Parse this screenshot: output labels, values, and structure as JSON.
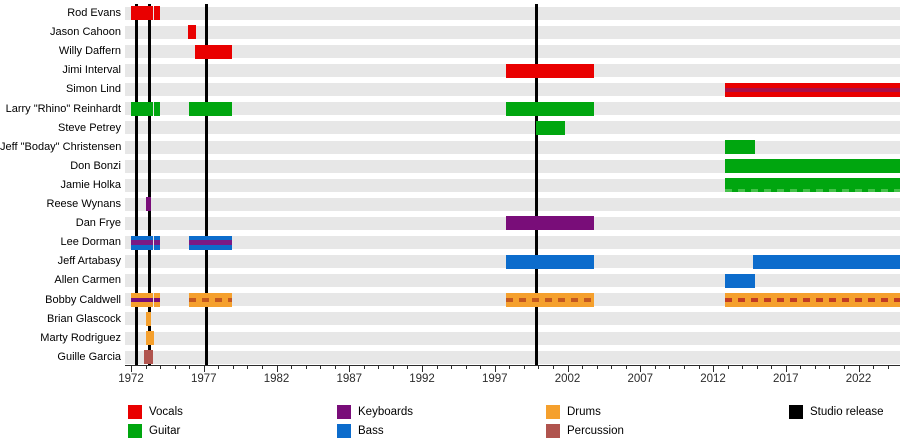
{
  "chart_data": {
    "type": "timeline",
    "description": "Band members timeline (gantt-style bars per member, by year)",
    "x_axis": {
      "min_year": 1971.6,
      "max_year": 2024.85,
      "major_tick_years": [
        1972,
        1977,
        1982,
        1987,
        1992,
        1997,
        2002,
        2007,
        2012,
        2017,
        2022
      ],
      "minor_tick_every": 1,
      "minor_tick_start": 1972,
      "minor_tick_end": 2024
    },
    "release_line_years": [
      1972.4,
      1973.25,
      1977.2,
      1999.9
    ],
    "legend": [
      {
        "label": "Vocals",
        "color": "#e90000",
        "col": 0,
        "row": 0
      },
      {
        "label": "Guitar",
        "color": "#00a60f",
        "col": 0,
        "row": 1
      },
      {
        "label": "Keyboards",
        "color": "#790d79",
        "col": 1,
        "row": 0
      },
      {
        "label": "Bass",
        "color": "#0c6ccc",
        "col": 1,
        "row": 1
      },
      {
        "label": "Drums",
        "color": "#f5a02d",
        "col": 2,
        "row": 0
      },
      {
        "label": "Percussion",
        "color": "#b0544e",
        "col": 2,
        "row": 1
      },
      {
        "label": "Studio release",
        "color": "#000000",
        "col": 3,
        "row": 0
      }
    ],
    "members": [
      {
        "name": "Rod Evans",
        "bars": [
          {
            "start": 1972.0,
            "end": 1973.5,
            "color": "#e90000"
          },
          {
            "start": 1973.6,
            "end": 1974.0,
            "color": "#e90000"
          }
        ]
      },
      {
        "name": "Jason Cahoon",
        "bars": [
          {
            "start": 1975.9,
            "end": 1976.5,
            "color": "#e90000"
          }
        ]
      },
      {
        "name": "Willy Daffern",
        "bars": [
          {
            "start": 1976.4,
            "end": 1978.95,
            "color": "#e90000"
          }
        ]
      },
      {
        "name": "Jimi Interval",
        "bars": [
          {
            "start": 1997.8,
            "end": 2003.8,
            "color": "#e90000"
          }
        ]
      },
      {
        "name": "Simon Lind",
        "bars": [
          {
            "start": 2012.8,
            "end": 2024.85,
            "color": "#e90000",
            "stripe": {
              "color": "#ab0f48",
              "style": "solid",
              "position": "middle"
            }
          }
        ]
      },
      {
        "name": "Larry \"Rhino\" Reinhardt",
        "bars": [
          {
            "start": 1972.0,
            "end": 1973.5,
            "color": "#00a60f"
          },
          {
            "start": 1973.6,
            "end": 1974.0,
            "color": "#00a60f"
          },
          {
            "start": 1976.0,
            "end": 1978.95,
            "color": "#00a60f"
          },
          {
            "start": 1997.8,
            "end": 2003.8,
            "color": "#00a60f"
          }
        ]
      },
      {
        "name": "Steve Petrey",
        "bars": [
          {
            "start": 1999.85,
            "end": 2001.85,
            "color": "#00a60f"
          }
        ]
      },
      {
        "name": "Jeff \"Boday\" Christensen",
        "bars": [
          {
            "start": 2012.8,
            "end": 2014.9,
            "color": "#00a60f"
          }
        ]
      },
      {
        "name": "Don Bonzi",
        "bars": [
          {
            "start": 2012.8,
            "end": 2024.85,
            "color": "#00a60f"
          }
        ]
      },
      {
        "name": "Jamie Holka",
        "bars": [
          {
            "start": 2012.8,
            "end": 2024.85,
            "color": "#00a60f",
            "stripe": {
              "color": "#45c24a",
              "style": "dashed",
              "position": "bottom"
            }
          }
        ]
      },
      {
        "name": "Reese Wynans",
        "bars": [
          {
            "start": 1973.0,
            "end": 1973.4,
            "color": "#790d79"
          }
        ]
      },
      {
        "name": "Dan Frye",
        "bars": [
          {
            "start": 1997.8,
            "end": 2003.8,
            "color": "#790d79"
          }
        ]
      },
      {
        "name": "Lee Dorman",
        "bars": [
          {
            "start": 1972.0,
            "end": 1973.5,
            "color": "#0c6ccc",
            "stripe": {
              "color": "#7a1a86",
              "style": "solid",
              "position": "middle"
            }
          },
          {
            "start": 1973.6,
            "end": 1974.0,
            "color": "#0c6ccc",
            "stripe": {
              "color": "#7a1a86",
              "style": "solid",
              "position": "middle"
            }
          },
          {
            "start": 1976.0,
            "end": 1978.95,
            "color": "#0c6ccc",
            "stripe": {
              "color": "#7a1a86",
              "style": "solid",
              "position": "middle"
            }
          }
        ]
      },
      {
        "name": "Jeff Artabasy",
        "bars": [
          {
            "start": 1997.8,
            "end": 2003.8,
            "color": "#0c6ccc"
          },
          {
            "start": 2014.75,
            "end": 2024.85,
            "color": "#0c6ccc"
          }
        ]
      },
      {
        "name": "Allen Carmen",
        "bars": [
          {
            "start": 2012.8,
            "end": 2014.9,
            "color": "#0c6ccc"
          }
        ]
      },
      {
        "name": "Bobby Caldwell",
        "bars": [
          {
            "start": 1972.0,
            "end": 1973.5,
            "color": "#f5a02d",
            "stripe": {
              "color": "#790d79",
              "style": "solid",
              "position": "middle"
            }
          },
          {
            "start": 1973.6,
            "end": 1974.0,
            "color": "#f5a02d",
            "stripe": {
              "color": "#790d79",
              "style": "solid",
              "position": "middle"
            }
          },
          {
            "start": 1976.0,
            "end": 1978.95,
            "color": "#f5a02d",
            "stripe": {
              "color": "#c4571f",
              "style": "dashed",
              "position": "middle"
            }
          },
          {
            "start": 1997.8,
            "end": 2003.8,
            "color": "#f5a02d",
            "stripe": {
              "color": "#c4571f",
              "style": "dashed",
              "position": "middle"
            }
          },
          {
            "start": 2012.8,
            "end": 2024.85,
            "color": "#f5a02d",
            "stripe": {
              "color": "#c23b22",
              "style": "dashed",
              "position": "middle"
            }
          }
        ]
      },
      {
        "name": "Brian Glascock",
        "bars": [
          {
            "start": 1973.0,
            "end": 1973.4,
            "color": "#f5a02d"
          }
        ]
      },
      {
        "name": "Marty Rodriguez",
        "bars": [
          {
            "start": 1973.05,
            "end": 1973.6,
            "color": "#f5a02d"
          }
        ]
      },
      {
        "name": "Guille Garcia",
        "bars": [
          {
            "start": 1972.9,
            "end": 1973.5,
            "color": "#b0544e"
          }
        ]
      }
    ]
  }
}
